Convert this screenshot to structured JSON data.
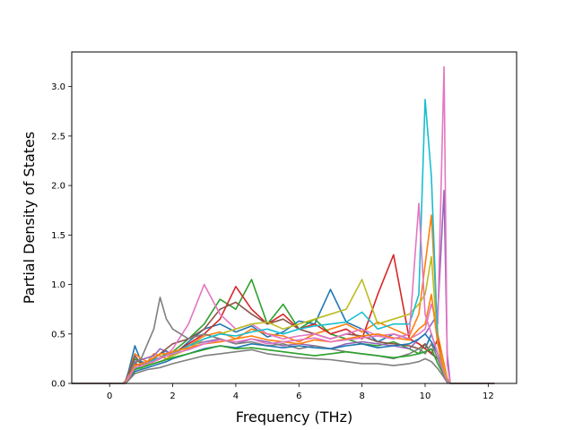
{
  "chart_data": {
    "type": "line",
    "title": "",
    "xlabel": "Frequency (THz)",
    "ylabel": "Partial Density of States",
    "xlim": [
      -1.2,
      12.9
    ],
    "ylim": [
      0.0,
      3.35
    ],
    "xticks": [
      0,
      2,
      4,
      6,
      8,
      10,
      12
    ],
    "yticks": [
      0.0,
      0.5,
      1.0,
      1.5,
      2.0,
      2.5,
      3.0
    ],
    "xtick_labels": [
      "0",
      "2",
      "4",
      "6",
      "8",
      "10",
      "12"
    ],
    "ytick_labels": [
      "0.0",
      "0.5",
      "1.0",
      "1.5",
      "2.0",
      "2.5",
      "3.0"
    ],
    "grid": false,
    "legend": "none",
    "palette": [
      "#1f77b4",
      "#ff7f0e",
      "#2ca02c",
      "#d62728",
      "#9467bd",
      "#8c564b",
      "#e377c2",
      "#7f7f7f",
      "#bcbd22",
      "#17becf"
    ],
    "x": [
      -1.2,
      0.0,
      0.4,
      0.5,
      0.6,
      0.8,
      1.0,
      1.2,
      1.4,
      1.6,
      1.8,
      2.0,
      2.5,
      3.0,
      3.5,
      4.0,
      4.5,
      5.0,
      5.5,
      6.0,
      6.5,
      7.0,
      7.5,
      8.0,
      8.5,
      9.0,
      9.5,
      9.8,
      10.0,
      10.2,
      10.4,
      10.6,
      10.7,
      10.8,
      10.9,
      11.0,
      12.2
    ],
    "series": [
      {
        "color": "#1f77b4",
        "values": [
          0,
          0,
          0,
          0.02,
          0.12,
          0.38,
          0.22,
          0.2,
          0.25,
          0.3,
          0.33,
          0.28,
          0.42,
          0.55,
          0.6,
          0.52,
          0.58,
          0.47,
          0.52,
          0.63,
          0.6,
          0.95,
          0.62,
          0.55,
          0.42,
          0.5,
          0.45,
          0.4,
          0.35,
          0.5,
          0.3,
          0.15,
          0.05,
          0,
          0,
          0,
          0
        ]
      },
      {
        "color": "#ff7f0e",
        "values": [
          0,
          0,
          0,
          0.01,
          0.1,
          0.3,
          0.25,
          0.22,
          0.3,
          0.28,
          0.25,
          0.3,
          0.38,
          0.48,
          0.52,
          0.45,
          0.55,
          0.5,
          0.48,
          0.42,
          0.5,
          0.55,
          0.6,
          0.52,
          0.62,
          0.55,
          0.48,
          0.7,
          1.2,
          1.7,
          0.5,
          0.2,
          0.05,
          0,
          0,
          0,
          0
        ]
      },
      {
        "color": "#2ca02c",
        "values": [
          0,
          0,
          0,
          0.02,
          0.1,
          0.25,
          0.2,
          0.18,
          0.24,
          0.26,
          0.3,
          0.32,
          0.45,
          0.6,
          0.85,
          0.75,
          1.05,
          0.6,
          0.8,
          0.55,
          0.65,
          0.5,
          0.45,
          0.4,
          0.38,
          0.42,
          0.35,
          0.3,
          0.4,
          0.3,
          0.25,
          0.1,
          0.02,
          0,
          0,
          0,
          0
        ]
      },
      {
        "color": "#d62728",
        "values": [
          0,
          0,
          0,
          0.01,
          0.08,
          0.2,
          0.18,
          0.2,
          0.22,
          0.25,
          0.28,
          0.3,
          0.4,
          0.5,
          0.65,
          0.98,
          0.75,
          0.6,
          0.7,
          0.55,
          0.6,
          0.5,
          0.55,
          0.45,
          0.9,
          1.3,
          0.45,
          0.4,
          0.35,
          0.3,
          0.45,
          0.1,
          0.03,
          0,
          0,
          0,
          0
        ]
      },
      {
        "color": "#9467bd",
        "values": [
          0,
          0,
          0,
          0.01,
          0.06,
          0.22,
          0.24,
          0.26,
          0.28,
          0.35,
          0.32,
          0.3,
          0.38,
          0.42,
          0.45,
          0.4,
          0.45,
          0.42,
          0.38,
          0.4,
          0.38,
          0.35,
          0.4,
          0.42,
          0.4,
          0.38,
          0.35,
          0.45,
          0.5,
          0.6,
          0.7,
          1.95,
          0.3,
          0,
          0,
          0,
          0
        ]
      },
      {
        "color": "#8c564b",
        "values": [
          0,
          0,
          0,
          0.02,
          0.1,
          0.28,
          0.2,
          0.22,
          0.25,
          0.3,
          0.35,
          0.4,
          0.45,
          0.55,
          0.75,
          0.82,
          0.7,
          0.6,
          0.65,
          0.55,
          0.5,
          0.45,
          0.5,
          0.48,
          0.42,
          0.4,
          0.38,
          0.35,
          0.4,
          0.3,
          0.25,
          0.12,
          0.03,
          0,
          0,
          0,
          0
        ]
      },
      {
        "color": "#e377c2",
        "values": [
          0,
          0,
          0,
          0.01,
          0.08,
          0.15,
          0.18,
          0.2,
          0.22,
          0.25,
          0.28,
          0.35,
          0.6,
          1.0,
          0.7,
          0.55,
          0.6,
          0.5,
          0.45,
          0.48,
          0.5,
          0.45,
          0.5,
          0.55,
          0.48,
          0.5,
          0.45,
          0.5,
          0.55,
          0.8,
          0.6,
          3.2,
          0.2,
          0,
          0,
          0,
          0
        ]
      },
      {
        "color": "#7f7f7f",
        "values": [
          0,
          0,
          0,
          0.01,
          0.06,
          0.2,
          0.25,
          0.4,
          0.55,
          0.87,
          0.65,
          0.55,
          0.45,
          0.5,
          0.45,
          0.4,
          0.42,
          0.38,
          0.4,
          0.35,
          0.38,
          0.35,
          0.32,
          0.3,
          0.28,
          0.25,
          0.3,
          0.35,
          0.3,
          0.4,
          0.25,
          0.1,
          0.02,
          0,
          0,
          0,
          0
        ]
      },
      {
        "color": "#bcbd22",
        "values": [
          0,
          0,
          0,
          0.01,
          0.05,
          0.18,
          0.15,
          0.2,
          0.2,
          0.22,
          0.25,
          0.28,
          0.35,
          0.45,
          0.5,
          0.55,
          0.6,
          0.62,
          0.55,
          0.6,
          0.65,
          0.7,
          0.75,
          1.05,
          0.6,
          0.65,
          0.7,
          0.8,
          0.9,
          1.28,
          0.4,
          0.15,
          0.03,
          0,
          0,
          0,
          0
        ]
      },
      {
        "color": "#17becf",
        "values": [
          0,
          0,
          0,
          0.01,
          0.05,
          0.15,
          0.18,
          0.2,
          0.24,
          0.26,
          0.28,
          0.3,
          0.38,
          0.45,
          0.5,
          0.48,
          0.52,
          0.55,
          0.5,
          0.55,
          0.58,
          0.6,
          0.62,
          0.72,
          0.55,
          0.6,
          0.6,
          0.9,
          2.87,
          2.09,
          0.4,
          0.1,
          0.02,
          0,
          0,
          0,
          0
        ]
      },
      {
        "color": "#1f77b4",
        "values": [
          0,
          0,
          0,
          0.0,
          0.04,
          0.12,
          0.14,
          0.16,
          0.18,
          0.2,
          0.22,
          0.25,
          0.3,
          0.35,
          0.38,
          0.36,
          0.4,
          0.38,
          0.36,
          0.38,
          0.36,
          0.35,
          0.38,
          0.4,
          0.36,
          0.38,
          0.4,
          0.45,
          0.5,
          0.42,
          0.3,
          0.1,
          0.02,
          0,
          0,
          0,
          0
        ]
      },
      {
        "color": "#ff7f0e",
        "values": [
          0,
          0,
          0,
          0.01,
          0.06,
          0.18,
          0.2,
          0.22,
          0.26,
          0.3,
          0.3,
          0.32,
          0.36,
          0.4,
          0.42,
          0.45,
          0.48,
          0.44,
          0.42,
          0.4,
          0.44,
          0.42,
          0.45,
          0.48,
          0.5,
          0.46,
          0.44,
          0.55,
          0.6,
          0.9,
          0.4,
          0.12,
          0.02,
          0,
          0,
          0,
          0
        ]
      },
      {
        "color": "#2ca02c",
        "values": [
          0,
          0,
          0,
          0.0,
          0.04,
          0.14,
          0.16,
          0.18,
          0.2,
          0.22,
          0.24,
          0.26,
          0.3,
          0.34,
          0.38,
          0.35,
          0.36,
          0.34,
          0.32,
          0.3,
          0.28,
          0.3,
          0.32,
          0.3,
          0.28,
          0.26,
          0.28,
          0.3,
          0.32,
          0.35,
          0.2,
          0.08,
          0.02,
          0,
          0,
          0,
          0
        ]
      },
      {
        "color": "#e377c2",
        "values": [
          0,
          0,
          0,
          0.0,
          0.05,
          0.16,
          0.18,
          0.2,
          0.22,
          0.26,
          0.28,
          0.3,
          0.34,
          0.4,
          0.44,
          0.42,
          0.45,
          0.4,
          0.42,
          0.44,
          0.46,
          0.42,
          0.44,
          0.46,
          0.48,
          0.45,
          0.5,
          1.82,
          0.7,
          0.5,
          0.3,
          0.1,
          0.02,
          0,
          0,
          0,
          0
        ]
      },
      {
        "color": "#7f7f7f",
        "values": [
          0,
          0,
          0,
          0.0,
          0.03,
          0.1,
          0.12,
          0.14,
          0.15,
          0.16,
          0.18,
          0.2,
          0.24,
          0.28,
          0.3,
          0.32,
          0.34,
          0.3,
          0.28,
          0.26,
          0.25,
          0.24,
          0.22,
          0.2,
          0.2,
          0.18,
          0.2,
          0.22,
          0.25,
          0.22,
          0.15,
          0.06,
          0.01,
          0,
          0,
          0,
          0
        ]
      }
    ]
  }
}
